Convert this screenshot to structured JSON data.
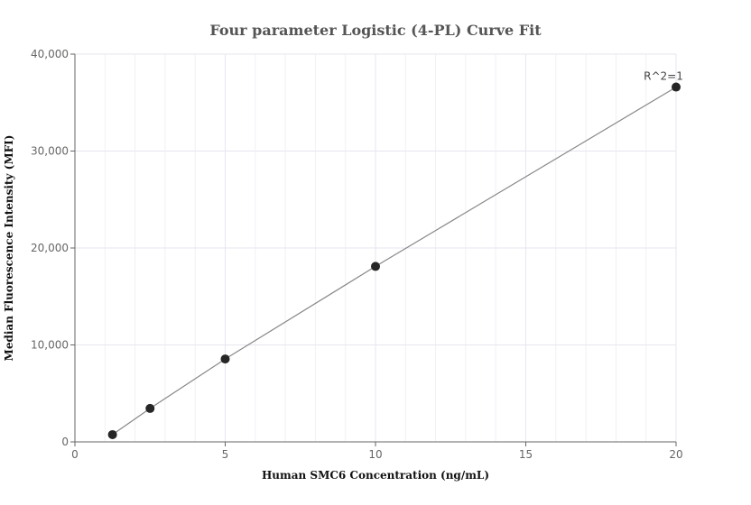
{
  "chart_data": {
    "type": "scatter",
    "title": "Four parameter Logistic (4-PL) Curve Fit",
    "xlabel": "Human SMC6 Concentration (ng/mL)",
    "ylabel": "Median Fluorescence Intensity (MFI)",
    "xlim": [
      0,
      20
    ],
    "ylim": [
      0,
      40000
    ],
    "x_ticks": [
      0,
      5,
      10,
      15,
      20
    ],
    "x_tick_labels": [
      "0",
      "5",
      "10",
      "15",
      "20"
    ],
    "y_ticks": [
      0,
      10000,
      20000,
      30000,
      40000
    ],
    "y_tick_labels": [
      "0",
      "10,000",
      "20,000",
      "30,000",
      "40,000"
    ],
    "grid": true,
    "series": [
      {
        "points": [
          {
            "x": 1.25,
            "y": 750
          },
          {
            "x": 2.5,
            "y": 3450
          },
          {
            "x": 5,
            "y": 8550
          },
          {
            "x": 10,
            "y": 18100
          },
          {
            "x": 20,
            "y": 36600
          }
        ],
        "color": "#262626"
      }
    ],
    "fit_line": {
      "color": "#888888"
    },
    "annotations": [
      {
        "text": "R^2=1",
        "x": 20,
        "y": 36600
      }
    ]
  }
}
